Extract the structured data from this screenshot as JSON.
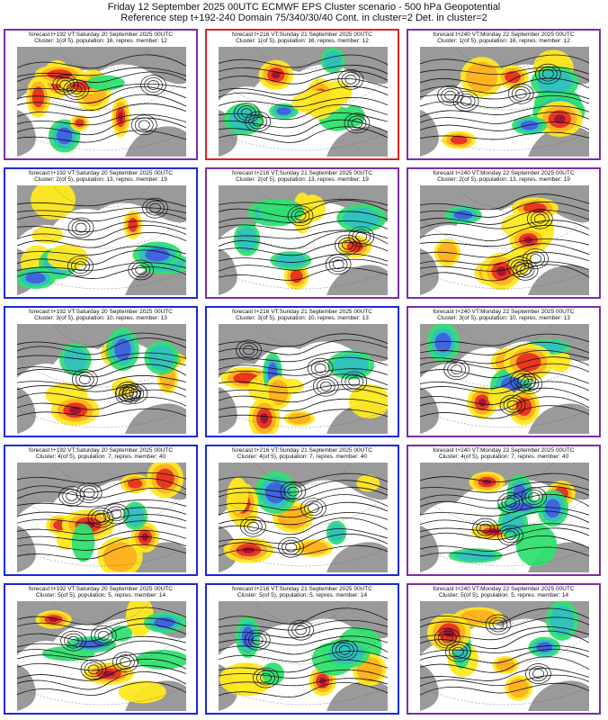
{
  "header": {
    "line1": "Friday 12 September 2025 00UTC ECMWF EPS Cluster scenario - 500 hPa Geopotential",
    "line2": "Reference step t+192-240 Domain 75/340/30/40 Cont. in cluster=2 Det. in cluster=2"
  },
  "colors": {
    "border_blue": "#1a2ad6",
    "border_red": "#e02222",
    "border_purple": "#7a2fa6",
    "land": "#9a9a9a",
    "ocean": "#ffffff",
    "pos_strong": "#a0103a",
    "pos_mid": "#e83020",
    "pos_weak": "#ffb020",
    "pos_light": "#ffe820",
    "neg_weak": "#30e070",
    "neg_mid": "#30c0c0",
    "neg_strong": "#4060e0"
  },
  "panels": [
    {
      "border": "purple",
      "line1": "forecast t+192 VT:Saturday 20 September 2025 00UTC",
      "line2": "Cluster: 1(of 5), population: 16, repres. member: 12"
    },
    {
      "border": "red",
      "line1": "forecast t+216 VT:Sunday 21 September 2025 00UTC",
      "line2": "Cluster: 1(of 5), population: 16, repres. member: 12"
    },
    {
      "border": "purple",
      "line1": "forecast t+240 VT:Monday 22 September 2025 00UTC",
      "line2": "Cluster: 1(of 5), population: 16, repres. member: 12"
    },
    {
      "border": "blue",
      "line1": "forecast t+192 VT:Saturday 20 September 2025 00UTC",
      "line2": "Cluster: 2(of 5), population: 13, repres. member: 19"
    },
    {
      "border": "purple",
      "line1": "forecast t+216 VT:Sunday 21 September 2025 00UTC",
      "line2": "Cluster: 2(of 5), population: 13, repres. member: 19"
    },
    {
      "border": "purple",
      "line1": "forecast t+240 VT:Monday 22 September 2025 00UTC",
      "line2": "Cluster: 2(of 5), population: 13, repres. member: 19"
    },
    {
      "border": "blue",
      "line1": "forecast t+192 VT:Saturday 20 September 2025 00UTC",
      "line2": "Cluster: 3(of 5), population: 10, repres. member: 13"
    },
    {
      "border": "blue",
      "line1": "forecast t+216 VT:Sunday 21 September 2025 00UTC",
      "line2": "Cluster: 3(of 5), population: 10, repres. member: 13"
    },
    {
      "border": "purple",
      "line1": "forecast t+240 VT:Monday 22 September 2025 00UTC",
      "line2": "Cluster: 3(of 5), population: 10, repres. member: 13"
    },
    {
      "border": "blue",
      "line1": "forecast t+192 VT:Saturday 20 September 2025 00UTC",
      "line2": "Cluster: 4(of 5), population: 7, repres. member: 40"
    },
    {
      "border": "blue",
      "line1": "forecast t+216 VT:Sunday 21 September 2025 00UTC",
      "line2": "Cluster: 4(of 5), population: 7, repres. member: 40"
    },
    {
      "border": "purple",
      "line1": "forecast t+240 VT:Monday 22 September 2025 00UTC",
      "line2": "Cluster: 4(of 5), population: 7, repres. member: 40"
    },
    {
      "border": "blue",
      "line1": "forecast t+192 VT:Saturday 20 September 2025 00UTC",
      "line2": "Cluster: 5(of 5), population: 5, repres. member: 14"
    },
    {
      "border": "blue",
      "line1": "forecast t+216 VT:Sunday 21 September 2025 00UTC",
      "line2": "Cluster: 5(of 5), population: 5, repres. member: 14"
    },
    {
      "border": "purple",
      "line1": "forecast t+240 VT:Monday 22 September 2025 00UTC",
      "line2": "Cluster: 5(of 5), population: 5, repres. member: 14"
    }
  ]
}
